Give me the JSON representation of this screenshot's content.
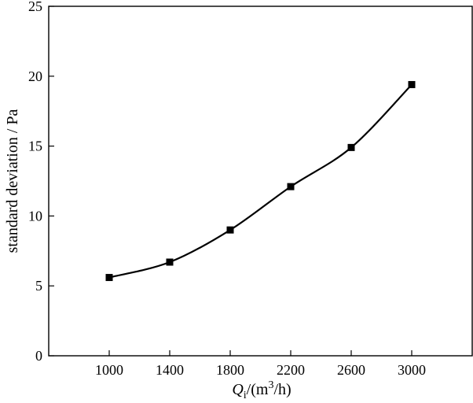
{
  "chart_data": {
    "type": "scatter",
    "x": [
      1000,
      1400,
      1800,
      2200,
      2600,
      3000
    ],
    "y": [
      5.6,
      6.7,
      9.0,
      12.1,
      14.9,
      19.4
    ],
    "xlim": [
      600,
      3400
    ],
    "ylim": [
      0,
      25
    ],
    "xticks": [
      1000,
      1400,
      1800,
      2200,
      2600,
      3000
    ],
    "yticks": [
      0,
      5,
      10,
      15,
      20,
      25
    ],
    "xlabel": {
      "symbol": "Q",
      "subscript": "i",
      "units_prefix": "/(m",
      "superscript": "3",
      "units_suffix": "/h)"
    },
    "ylabel": "standard deviation / Pa",
    "grid": false,
    "legend": "none",
    "marker": "square",
    "fit_line": "smooth curve through points",
    "color": "#000000"
  }
}
